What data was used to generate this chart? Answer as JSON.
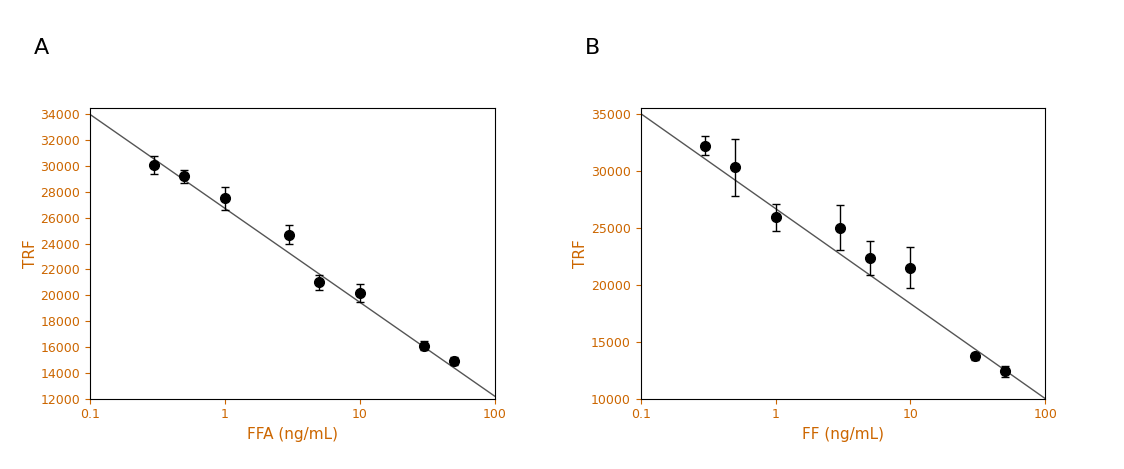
{
  "panel_A": {
    "label": "A",
    "xlabel": "FFA (ng/mL)",
    "ylabel": "TRF",
    "x": [
      0.3,
      0.5,
      1.0,
      3.0,
      5.0,
      10.0,
      30.0,
      50.0
    ],
    "y": [
      30100,
      29200,
      27500,
      24700,
      21000,
      20200,
      16100,
      14900
    ],
    "yerr": [
      700,
      500,
      900,
      700,
      600,
      700,
      350,
      300
    ],
    "fit_x": [
      0.1,
      100
    ],
    "fit_y": [
      34000,
      12200
    ],
    "ylim": [
      12000,
      34500
    ],
    "yticks": [
      12000,
      14000,
      16000,
      18000,
      20000,
      22000,
      24000,
      26000,
      28000,
      30000,
      32000,
      34000
    ],
    "xlim": [
      0.1,
      100
    ]
  },
  "panel_B": {
    "label": "B",
    "xlabel": "FF (ng/mL)",
    "ylabel": "TRF",
    "x": [
      0.3,
      0.5,
      1.0,
      3.0,
      5.0,
      10.0,
      30.0,
      50.0
    ],
    "y": [
      32200,
      30300,
      25900,
      25000,
      22300,
      21500,
      13700,
      12400
    ],
    "yerr": [
      800,
      2500,
      1200,
      2000,
      1500,
      1800,
      300,
      500
    ],
    "fit_x": [
      0.1,
      100
    ],
    "fit_y": [
      35000,
      10000
    ],
    "ylim": [
      10000,
      35500
    ],
    "yticks": [
      10000,
      15000,
      20000,
      25000,
      30000,
      35000
    ],
    "xlim": [
      0.1,
      100
    ]
  },
  "marker_color": "#000000",
  "line_color": "#555555",
  "marker_size": 7,
  "line_width": 1.0,
  "capsize": 3,
  "elinewidth": 1.0,
  "axis_color": "#cc6600",
  "tick_color": "#cc6600",
  "label_color_xy": "#cc6600",
  "tick_fontsize": 9,
  "panel_label_fontsize": 16,
  "xlabel_fontsize": 11,
  "ylabel_fontsize": 11,
  "figure_bg": "#ffffff"
}
